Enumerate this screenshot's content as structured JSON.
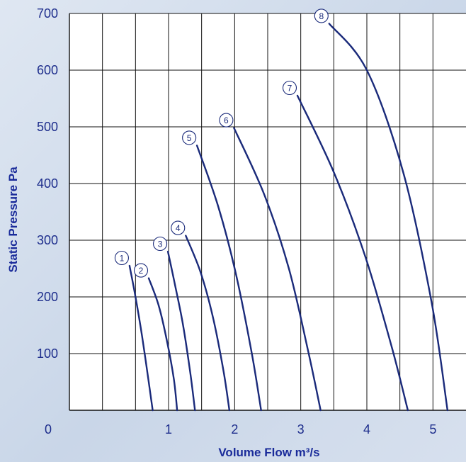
{
  "chart_data": {
    "type": "line",
    "title": "",
    "xlabel": "Volume Flow m³/s",
    "ylabel": "Static Pressure Pa",
    "origin_label": "0",
    "xlim": [
      -0.5,
      5.5
    ],
    "ylim": [
      0,
      700
    ],
    "x_ticks": [
      1,
      2,
      3,
      4,
      5
    ],
    "x_tick_labels": [
      "1",
      "2",
      "3",
      "4",
      "5"
    ],
    "y_ticks": [
      100,
      200,
      300,
      400,
      500,
      600,
      700
    ],
    "y_tick_labels": [
      "100",
      "200",
      "300",
      "400",
      "500",
      "600",
      "700"
    ],
    "grid": true,
    "series": [
      {
        "name": "1",
        "x": [
          0.41,
          0.5,
          0.6,
          0.7,
          0.76
        ],
        "y": [
          255,
          200,
          130,
          50,
          0
        ]
      },
      {
        "name": "2",
        "x": [
          0.7,
          0.85,
          0.98,
          1.08,
          1.13
        ],
        "y": [
          233,
          185,
          120,
          55,
          0
        ]
      },
      {
        "name": "3",
        "x": [
          0.99,
          1.1,
          1.22,
          1.33,
          1.4
        ],
        "y": [
          280,
          220,
          150,
          65,
          0
        ]
      },
      {
        "name": "4",
        "x": [
          1.26,
          1.48,
          1.67,
          1.83,
          1.92
        ],
        "y": [
          308,
          245,
          165,
          70,
          0
        ]
      },
      {
        "name": "5",
        "x": [
          1.43,
          1.75,
          2.02,
          2.26,
          2.4
        ],
        "y": [
          467,
          360,
          240,
          100,
          0
        ]
      },
      {
        "name": "6",
        "x": [
          1.99,
          2.45,
          2.82,
          3.12,
          3.3
        ],
        "y": [
          498,
          380,
          250,
          100,
          0
        ]
      },
      {
        "name": "7",
        "x": [
          2.95,
          3.5,
          3.98,
          4.38,
          4.62
        ],
        "y": [
          555,
          420,
          270,
          110,
          0
        ]
      },
      {
        "name": "8",
        "x": [
          3.43,
          4.0,
          4.55,
          4.98,
          5.22
        ],
        "y": [
          682,
          600,
          420,
          190,
          0
        ]
      }
    ]
  }
}
